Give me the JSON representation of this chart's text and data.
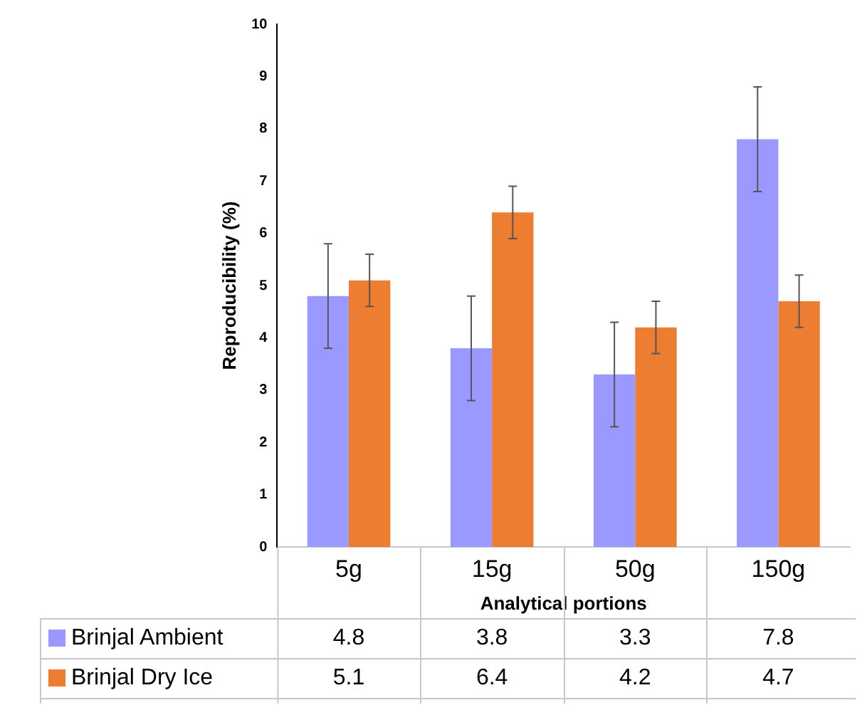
{
  "chart_data": {
    "type": "bar",
    "xlabel": "Analytical portions",
    "ylabel": "Reproducibility (%)",
    "categories": [
      "5g",
      "15g",
      "50g",
      "150g"
    ],
    "series": [
      {
        "name": "Brinjal Ambient",
        "color": "#9999ff",
        "values": [
          4.8,
          3.8,
          3.3,
          7.8
        ],
        "errors": [
          1.0,
          1.0,
          1.0,
          1.0
        ]
      },
      {
        "name": "Brinjal Dry Ice",
        "color": "#ed7d31",
        "values": [
          5.1,
          6.4,
          4.2,
          4.7
        ],
        "errors": [
          0.5,
          0.5,
          0.5,
          0.5
        ]
      }
    ],
    "ylim": [
      0,
      10
    ],
    "yticks": [
      0,
      1,
      2,
      3,
      4,
      5,
      6,
      7,
      8,
      9,
      10
    ],
    "grid": false,
    "legend": "bottom",
    "data_labels": true
  }
}
